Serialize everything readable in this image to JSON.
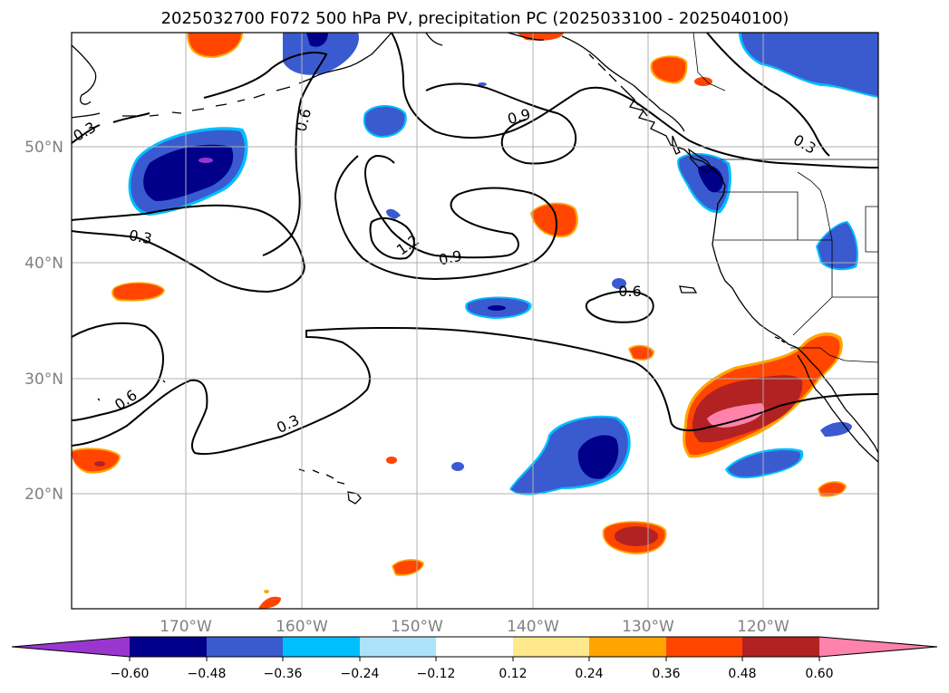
{
  "title": "2025032700 F072 500 hPa PV, precipitation PC (2025033100 - 2025040100)",
  "lat_labels": [
    "50°N",
    "40°N",
    "30°N",
    "20°N"
  ],
  "lon_labels": [
    "170°W",
    "160°W",
    "150°W",
    "140°W",
    "130°W",
    "120°W"
  ],
  "contour_labels": [
    "0.3",
    "0.6",
    "0.9",
    "1.2",
    "0.9",
    "0.3",
    "0.6",
    "0.3",
    "0.6",
    "0.3"
  ],
  "colorbar": {
    "ticks": [
      "−0.60",
      "−0.48",
      "−0.36",
      "−0.24",
      "−0.12",
      "0.12",
      "0.24",
      "0.36",
      "0.48",
      "0.60"
    ],
    "colors": [
      "#9a36cf",
      "#00008b",
      "#3a5bd0",
      "#00bfff",
      "#ade3fa",
      "#ffffff",
      "#ffe98c",
      "#ffa500",
      "#ff4500",
      "#b22222",
      "#ff82ab"
    ]
  },
  "colors": {
    "neg_light": "#ade3fa",
    "neg_cyan": "#00bfff",
    "neg_blue": "#3a5bd0",
    "neg_navy": "#00008b",
    "neg_purple": "#9a36cf",
    "pos_yellow": "#ffe98c",
    "pos_orange": "#ffa500",
    "pos_red": "#ff4500",
    "pos_darkred": "#b22222",
    "pos_pink": "#ff82ab",
    "grid": "#b0b0b0"
  }
}
